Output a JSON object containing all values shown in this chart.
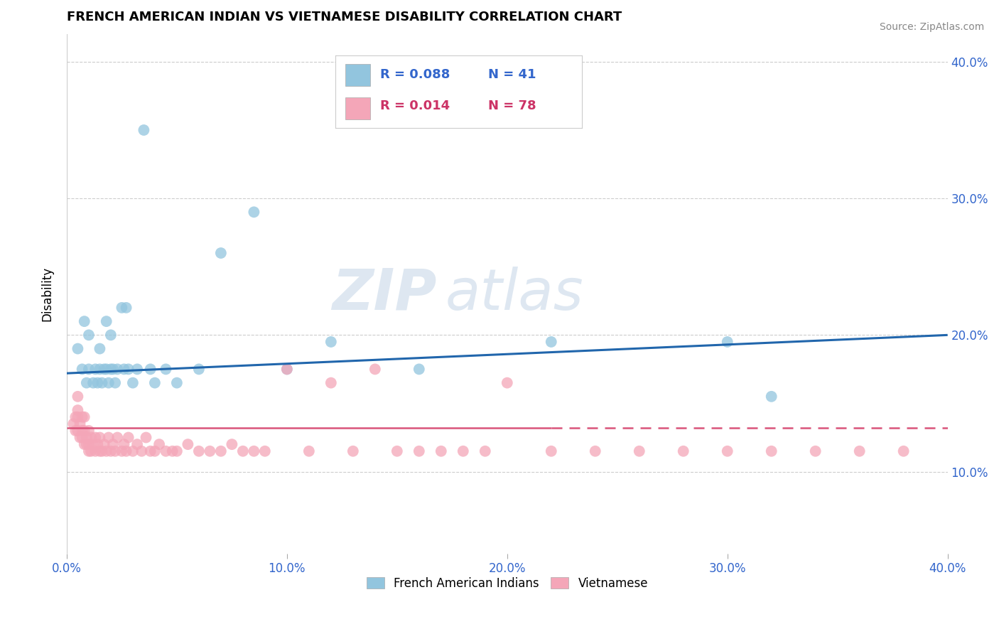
{
  "title": "FRENCH AMERICAN INDIAN VS VIETNAMESE DISABILITY CORRELATION CHART",
  "source_text": "Source: ZipAtlas.com",
  "ylabel": "Disability",
  "xlabel": "",
  "xlim": [
    0.0,
    0.4
  ],
  "ylim": [
    0.04,
    0.42
  ],
  "xtick_labels": [
    "0.0%",
    "10.0%",
    "20.0%",
    "30.0%",
    "40.0%"
  ],
  "xtick_values": [
    0.0,
    0.1,
    0.2,
    0.3,
    0.4
  ],
  "ytick_labels": [
    "10.0%",
    "20.0%",
    "30.0%",
    "40.0%"
  ],
  "ytick_values": [
    0.1,
    0.2,
    0.3,
    0.4
  ],
  "blue_label": "French American Indians",
  "pink_label": "Vietnamese",
  "blue_r": "R = 0.088",
  "blue_n": "N = 41",
  "pink_r": "R = 0.014",
  "pink_n": "N = 78",
  "blue_color": "#92c5de",
  "pink_color": "#f4a6b8",
  "blue_line_color": "#2166ac",
  "pink_line_color": "#d9547a",
  "watermark_zip": "ZIP",
  "watermark_atlas": "atlas",
  "blue_line_start_y": 0.172,
  "blue_line_end_y": 0.2,
  "pink_line_y": 0.132,
  "blue_scatter_x": [
    0.005,
    0.007,
    0.008,
    0.009,
    0.01,
    0.01,
    0.012,
    0.013,
    0.014,
    0.015,
    0.015,
    0.016,
    0.017,
    0.018,
    0.018,
    0.019,
    0.02,
    0.02,
    0.021,
    0.022,
    0.023,
    0.025,
    0.026,
    0.027,
    0.028,
    0.03,
    0.032,
    0.035,
    0.038,
    0.04,
    0.045,
    0.05,
    0.06,
    0.07,
    0.085,
    0.1,
    0.12,
    0.16,
    0.22,
    0.3,
    0.32
  ],
  "blue_scatter_y": [
    0.19,
    0.175,
    0.21,
    0.165,
    0.175,
    0.2,
    0.165,
    0.175,
    0.165,
    0.19,
    0.175,
    0.165,
    0.175,
    0.21,
    0.175,
    0.165,
    0.175,
    0.2,
    0.175,
    0.165,
    0.175,
    0.22,
    0.175,
    0.22,
    0.175,
    0.165,
    0.175,
    0.35,
    0.175,
    0.165,
    0.175,
    0.165,
    0.175,
    0.26,
    0.29,
    0.175,
    0.195,
    0.175,
    0.195,
    0.195,
    0.155
  ],
  "pink_scatter_x": [
    0.003,
    0.004,
    0.004,
    0.005,
    0.005,
    0.005,
    0.005,
    0.006,
    0.006,
    0.007,
    0.007,
    0.007,
    0.008,
    0.008,
    0.008,
    0.009,
    0.009,
    0.01,
    0.01,
    0.01,
    0.011,
    0.011,
    0.012,
    0.013,
    0.013,
    0.014,
    0.015,
    0.015,
    0.016,
    0.017,
    0.018,
    0.019,
    0.02,
    0.021,
    0.022,
    0.023,
    0.025,
    0.026,
    0.027,
    0.028,
    0.03,
    0.032,
    0.034,
    0.036,
    0.038,
    0.04,
    0.042,
    0.045,
    0.048,
    0.05,
    0.055,
    0.06,
    0.065,
    0.07,
    0.075,
    0.08,
    0.085,
    0.09,
    0.1,
    0.11,
    0.12,
    0.13,
    0.14,
    0.15,
    0.16,
    0.17,
    0.18,
    0.19,
    0.2,
    0.22,
    0.24,
    0.26,
    0.28,
    0.3,
    0.32,
    0.34,
    0.36,
    0.38
  ],
  "pink_scatter_y": [
    0.135,
    0.13,
    0.14,
    0.13,
    0.14,
    0.145,
    0.155,
    0.125,
    0.135,
    0.125,
    0.13,
    0.14,
    0.12,
    0.13,
    0.14,
    0.12,
    0.125,
    0.115,
    0.12,
    0.13,
    0.115,
    0.125,
    0.12,
    0.115,
    0.125,
    0.12,
    0.115,
    0.125,
    0.115,
    0.12,
    0.115,
    0.125,
    0.115,
    0.12,
    0.115,
    0.125,
    0.115,
    0.12,
    0.115,
    0.125,
    0.115,
    0.12,
    0.115,
    0.125,
    0.115,
    0.115,
    0.12,
    0.115,
    0.115,
    0.115,
    0.12,
    0.115,
    0.115,
    0.115,
    0.12,
    0.115,
    0.115,
    0.115,
    0.175,
    0.115,
    0.165,
    0.115,
    0.175,
    0.115,
    0.115,
    0.115,
    0.115,
    0.115,
    0.165,
    0.115,
    0.115,
    0.115,
    0.115,
    0.115,
    0.115,
    0.115,
    0.115,
    0.115
  ]
}
